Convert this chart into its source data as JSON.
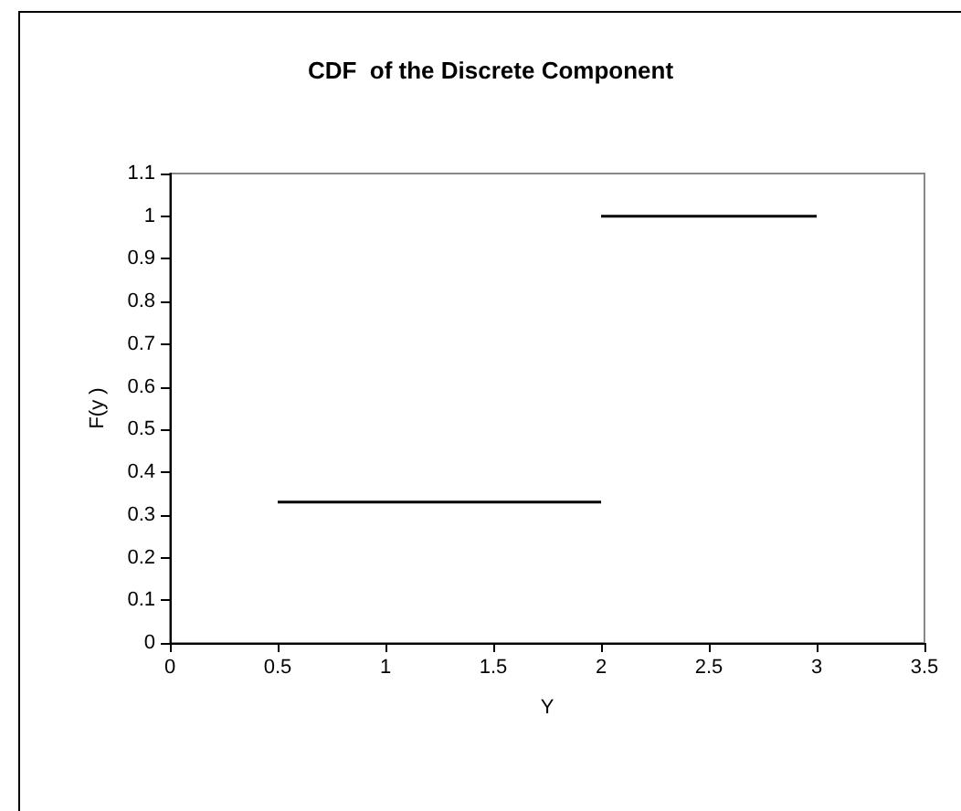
{
  "chart_data": {
    "type": "line",
    "title": "CDF  of the Discrete Component",
    "xlabel": "Y",
    "ylabel": "F(y )",
    "series": [
      {
        "color": "#000000",
        "x": [
          0.5,
          2
        ],
        "values": [
          0.33,
          0.33
        ]
      },
      {
        "color": "#000000",
        "x": [
          2,
          3
        ],
        "values": [
          1,
          1
        ]
      }
    ],
    "xlim": [
      0,
      3.5
    ],
    "xticks": [
      0,
      0.5,
      1,
      1.5,
      2,
      2.5,
      3,
      3.5
    ],
    "ylim": [
      0,
      1.1
    ],
    "yticks": [
      0,
      0.1,
      0.2,
      0.3,
      0.4,
      0.5,
      0.6,
      0.7,
      0.8,
      0.9,
      1,
      1.1
    ],
    "grid": false,
    "marker": "none",
    "line_style": "solid"
  }
}
